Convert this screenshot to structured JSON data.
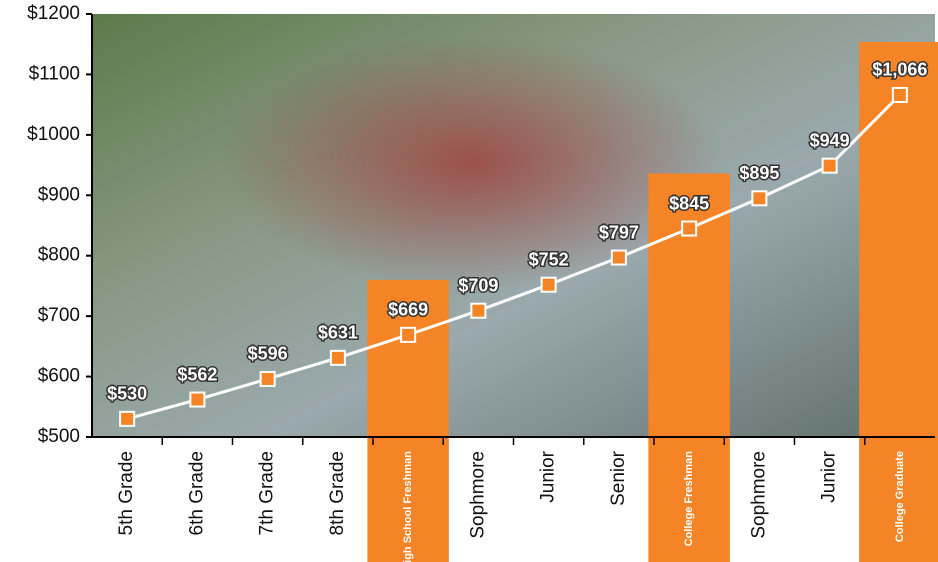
{
  "chart_data": {
    "type": "line",
    "categories": [
      "5th Grade",
      "6th Grade",
      "7th Grade",
      "8th Grade",
      "High School Freshman",
      "Sophmore",
      "Junior",
      "Senior",
      "College Freshman",
      "Sophmore",
      "Junior",
      "College Graduate"
    ],
    "values": [
      530,
      562,
      596,
      631,
      669,
      709,
      752,
      797,
      845,
      895,
      949,
      1066
    ],
    "value_labels": [
      "$530",
      "$562",
      "$596",
      "$631",
      "$669",
      "$709",
      "$752",
      "$797",
      "$845",
      "$895",
      "$949",
      "$1,066"
    ],
    "highlight": [
      4,
      8,
      11
    ],
    "color": "#f58426",
    "line_color": "#ffffff",
    "ylim": [
      500,
      1200
    ],
    "yticks": [
      {
        "value": 500,
        "label": "$500"
      },
      {
        "value": 600,
        "label": "$600"
      },
      {
        "value": 700,
        "label": "$700"
      },
      {
        "value": 800,
        "label": "$800"
      },
      {
        "value": 900,
        "label": "$900"
      },
      {
        "value": 1000,
        "label": "$1000"
      },
      {
        "value": 1100,
        "label": "$1100"
      },
      {
        "value": 1200,
        "label": "$1200"
      }
    ]
  }
}
